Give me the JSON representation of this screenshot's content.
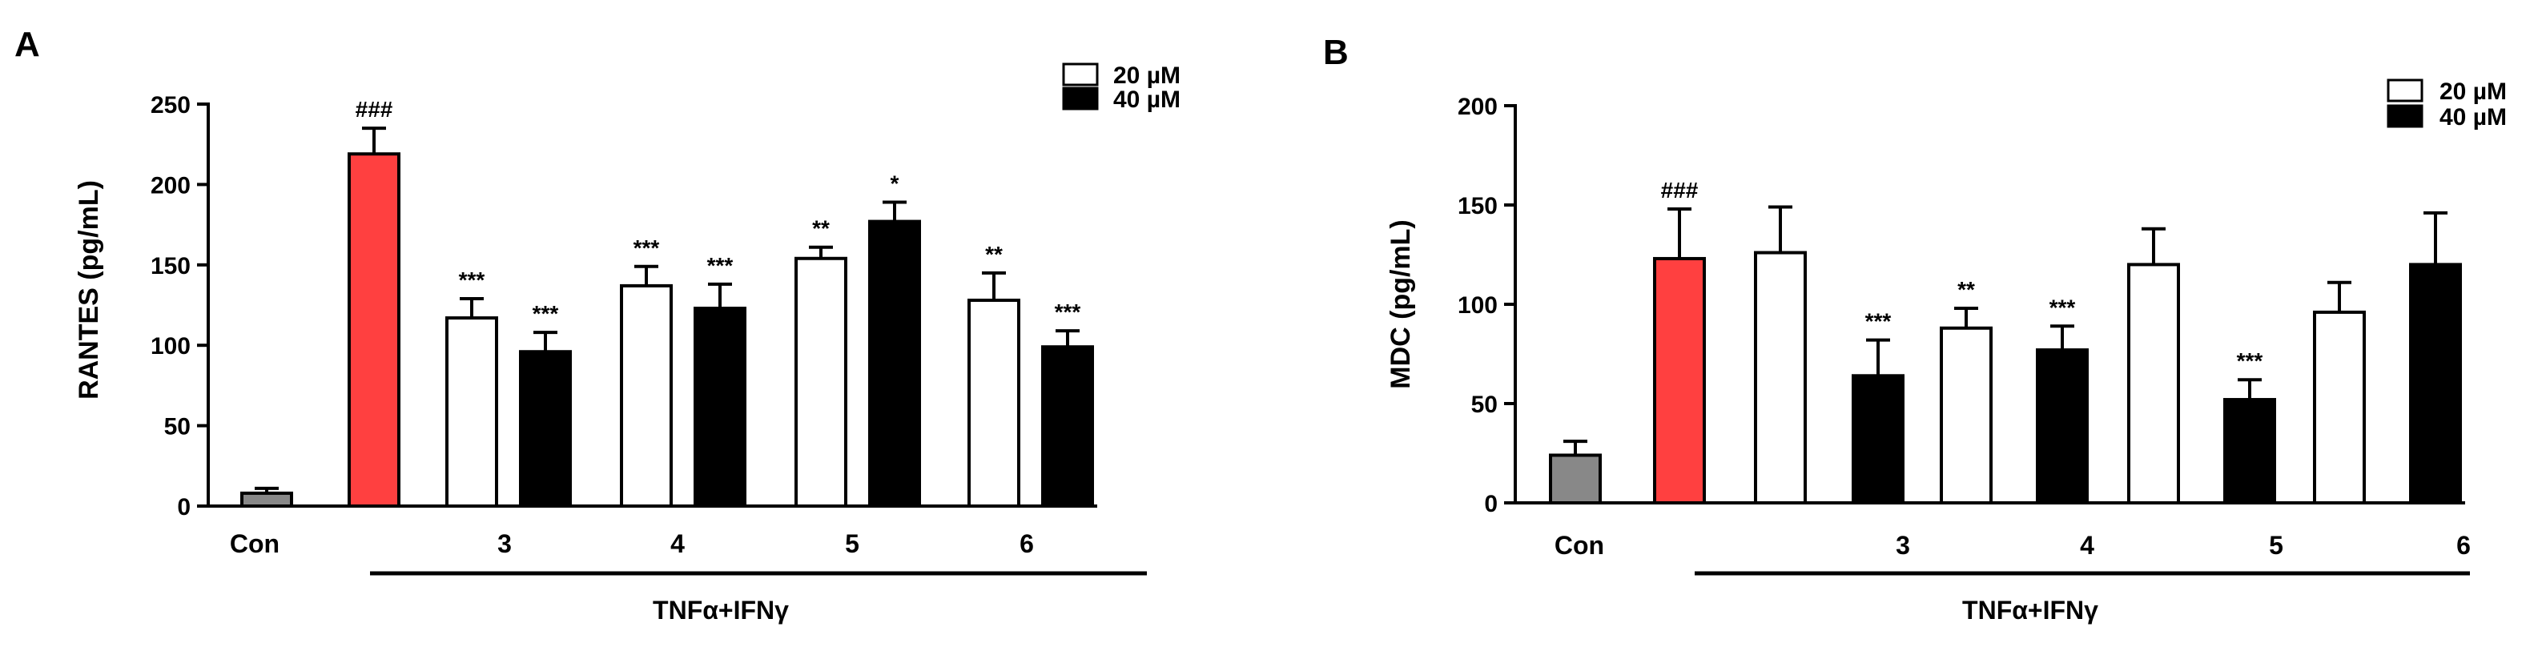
{
  "figure": {
    "legend": {
      "items": [
        {
          "label": "20 µM",
          "fill": "#ffffff"
        },
        {
          "label": "40 µM",
          "fill": "#000000"
        }
      ]
    }
  },
  "colors": {
    "control": "#888888",
    "stimulated": "#ff4040",
    "dose20": "#ffffff",
    "dose40": "#000000",
    "stroke": "#000000"
  },
  "chart_data": [
    {
      "type": "bar",
      "panel_label": "A",
      "ylabel": "RANTES (pg/mL)",
      "xlabel": "TNFα+IFNγ",
      "ylim": [
        0,
        250
      ],
      "yticks": [
        0,
        50,
        100,
        150,
        200,
        250
      ],
      "grid": false,
      "legend_position": "top-right",
      "x_tick_labels": [
        "Con",
        "3",
        "4",
        "5",
        "6"
      ],
      "bars": [
        {
          "group": "Con",
          "kind": "control",
          "value": 8,
          "error": 3,
          "annotation": ""
        },
        {
          "group": "TNFα+IFNγ",
          "kind": "stimulated",
          "value": 219,
          "error": 16,
          "annotation": "###"
        },
        {
          "group": "3",
          "kind": "dose20",
          "value": 117,
          "error": 12,
          "annotation": "***"
        },
        {
          "group": "3",
          "kind": "dose40",
          "value": 96,
          "error": 12,
          "annotation": "***"
        },
        {
          "group": "4",
          "kind": "dose20",
          "value": 137,
          "error": 12,
          "annotation": "***"
        },
        {
          "group": "4",
          "kind": "dose40",
          "value": 123,
          "error": 15,
          "annotation": "***"
        },
        {
          "group": "5",
          "kind": "dose20",
          "value": 154,
          "error": 7,
          "annotation": "**"
        },
        {
          "group": "5",
          "kind": "dose40",
          "value": 177,
          "error": 12,
          "annotation": "*"
        },
        {
          "group": "6",
          "kind": "dose20",
          "value": 128,
          "error": 17,
          "annotation": "**"
        },
        {
          "group": "6",
          "kind": "dose40",
          "value": 99,
          "error": 10,
          "annotation": "***"
        }
      ]
    },
    {
      "type": "bar",
      "panel_label": "B",
      "ylabel": "MDC (pg/mL)",
      "xlabel": "TNFα+IFNγ",
      "ylim": [
        0,
        200
      ],
      "yticks": [
        0,
        50,
        100,
        150,
        200
      ],
      "grid": false,
      "legend_position": "top-right",
      "x_tick_labels": [
        "Con",
        "3",
        "4",
        "5",
        "6"
      ],
      "bars": [
        {
          "group": "Con",
          "kind": "control",
          "value": 24,
          "error": 7,
          "annotation": ""
        },
        {
          "group": "TNFα+IFNγ",
          "kind": "stimulated",
          "value": 123,
          "error": 25,
          "annotation": "###"
        },
        {
          "group": "3",
          "kind": "dose20",
          "value": 126,
          "error": 23,
          "annotation": ""
        },
        {
          "group": "3",
          "kind": "dose40",
          "value": 64,
          "error": 18,
          "annotation": "***"
        },
        {
          "group": "4",
          "kind": "dose20",
          "value": 88,
          "error": 10,
          "annotation": "**"
        },
        {
          "group": "4",
          "kind": "dose40",
          "value": 77,
          "error": 12,
          "annotation": "***"
        },
        {
          "group": "5",
          "kind": "dose20",
          "value": 120,
          "error": 18,
          "annotation": ""
        },
        {
          "group": "5",
          "kind": "dose40",
          "value": 52,
          "error": 10,
          "annotation": "***"
        },
        {
          "group": "6",
          "kind": "dose20",
          "value": 96,
          "error": 15,
          "annotation": ""
        },
        {
          "group": "6",
          "kind": "dose40",
          "value": 120,
          "error": 26,
          "annotation": ""
        }
      ]
    }
  ]
}
